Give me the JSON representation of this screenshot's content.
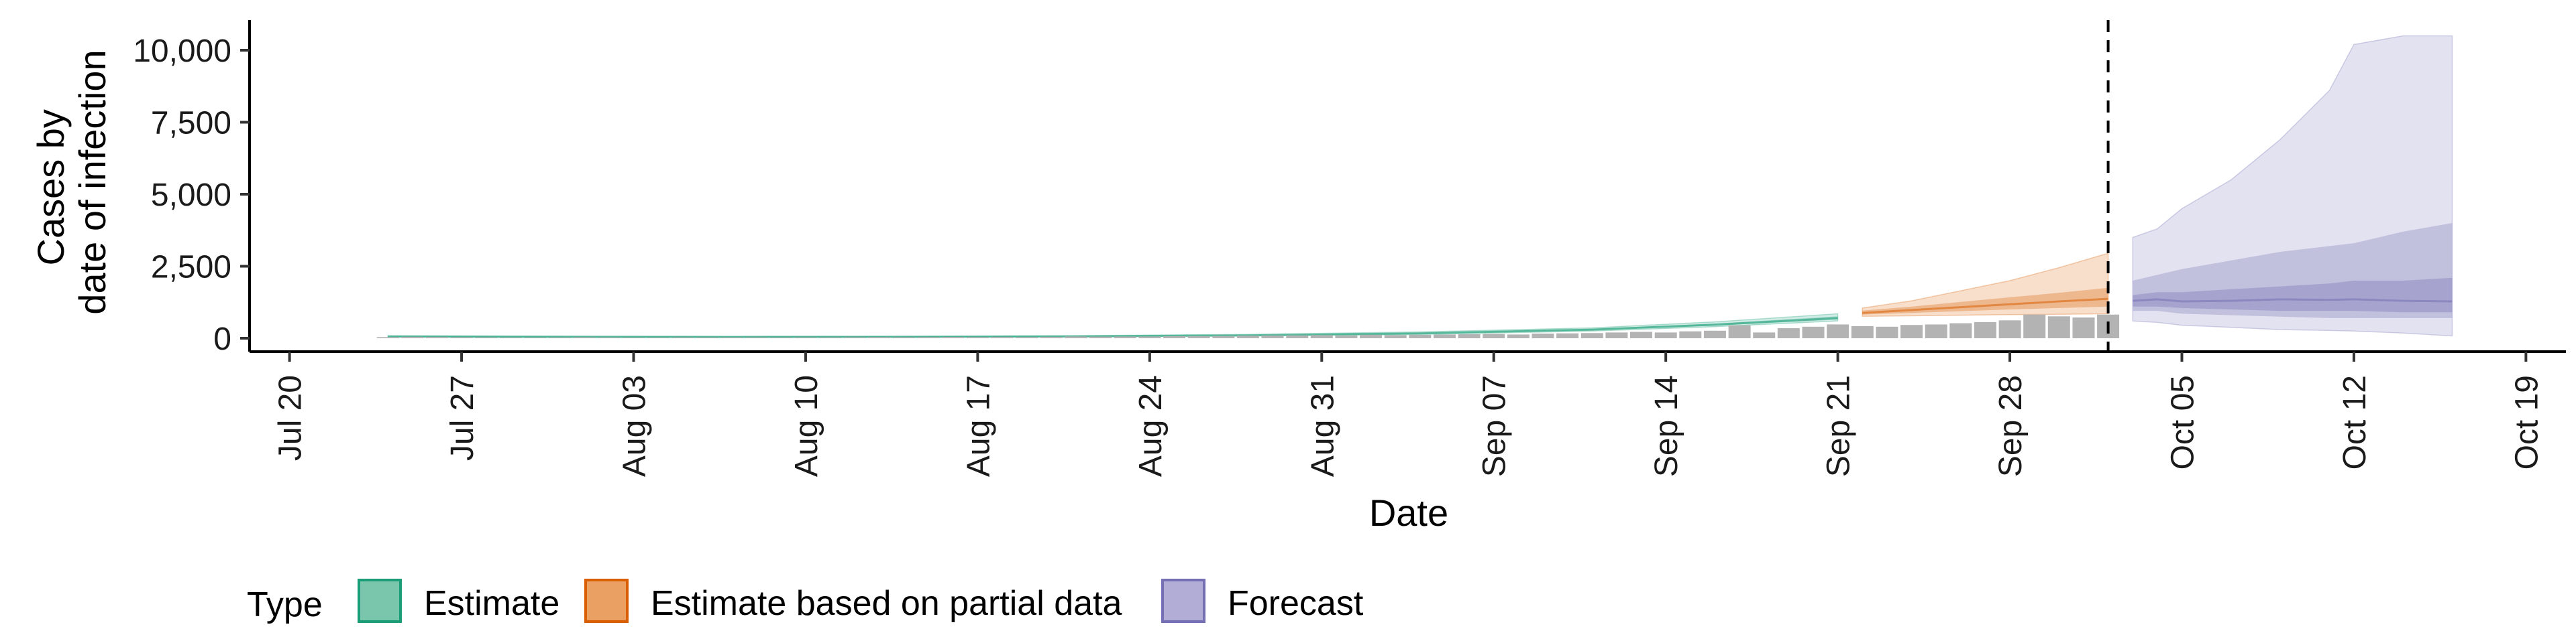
{
  "chart_data": {
    "type": "area",
    "xlabel": "Date",
    "ylabel_lines": [
      "Cases by",
      "date of infection"
    ],
    "x_ticks": [
      "Jul 20",
      "Jul 27",
      "Aug 03",
      "Aug 10",
      "Aug 17",
      "Aug 24",
      "Aug 31",
      "Sep 07",
      "Sep 14",
      "Sep 21",
      "Sep 28",
      "Oct 05",
      "Oct 12",
      "Oct 19"
    ],
    "x_range": [
      "2020-07-19",
      "2020-10-20"
    ],
    "y_ticks": [
      "0",
      "2,500",
      "5,000",
      "7,500",
      "10,000"
    ],
    "ylim": [
      0,
      10500
    ],
    "vline_date": "2020-10-02",
    "reported_cases": {
      "dates": [
        "2020-07-24",
        "2020-07-25",
        "2020-07-26",
        "2020-07-27",
        "2020-07-28",
        "2020-07-29",
        "2020-07-30",
        "2020-07-31",
        "2020-08-01",
        "2020-08-02",
        "2020-08-03",
        "2020-08-04",
        "2020-08-05",
        "2020-08-06",
        "2020-08-07",
        "2020-08-08",
        "2020-08-09",
        "2020-08-10",
        "2020-08-11",
        "2020-08-12",
        "2020-08-13",
        "2020-08-14",
        "2020-08-15",
        "2020-08-16",
        "2020-08-17",
        "2020-08-18",
        "2020-08-19",
        "2020-08-20",
        "2020-08-21",
        "2020-08-22",
        "2020-08-23",
        "2020-08-24",
        "2020-08-25",
        "2020-08-26",
        "2020-08-27",
        "2020-08-28",
        "2020-08-29",
        "2020-08-30",
        "2020-08-31",
        "2020-09-01",
        "2020-09-02",
        "2020-09-03",
        "2020-09-04",
        "2020-09-05",
        "2020-09-06",
        "2020-09-07",
        "2020-09-08",
        "2020-09-09",
        "2020-09-10",
        "2020-09-11",
        "2020-09-12",
        "2020-09-13",
        "2020-09-14",
        "2020-09-15",
        "2020-09-16",
        "2020-09-17",
        "2020-09-18",
        "2020-09-19",
        "2020-09-20",
        "2020-09-21",
        "2020-09-22",
        "2020-09-23",
        "2020-09-24",
        "2020-09-25",
        "2020-09-26",
        "2020-09-27",
        "2020-09-28",
        "2020-09-29",
        "2020-09-30",
        "2020-10-01",
        "2020-10-02"
      ],
      "values": [
        40,
        50,
        45,
        35,
        30,
        28,
        25,
        30,
        35,
        30,
        25,
        25,
        30,
        28,
        30,
        30,
        28,
        30,
        30,
        35,
        40,
        35,
        40,
        45,
        40,
        45,
        40,
        50,
        60,
        55,
        60,
        60,
        70,
        75,
        80,
        90,
        95,
        100,
        110,
        100,
        120,
        110,
        120,
        130,
        140,
        150,
        130,
        160,
        170,
        180,
        200,
        220,
        200,
        240,
        260,
        450,
        200,
        350,
        400,
        480,
        420,
        400,
        460,
        480,
        520,
        560,
        620,
        820,
        760,
        720,
        820
      ]
    },
    "series": [
      {
        "name": "Estimate",
        "color": "#1b9e77",
        "dates": [
          "2020-07-24",
          "2020-07-31",
          "2020-08-07",
          "2020-08-14",
          "2020-08-21",
          "2020-08-28",
          "2020-09-04",
          "2020-09-11",
          "2020-09-16",
          "2020-09-21"
        ],
        "median": [
          60,
          50,
          45,
          50,
          65,
          100,
          170,
          300,
          470,
          700
        ],
        "lower90": [
          40,
          30,
          28,
          32,
          45,
          75,
          130,
          250,
          400,
          600
        ],
        "upper90": [
          90,
          75,
          65,
          70,
          90,
          135,
          220,
          360,
          570,
          850
        ],
        "lower50": [
          50,
          42,
          38,
          42,
          55,
          88,
          150,
          275,
          440,
          650
        ],
        "upper50": [
          72,
          60,
          55,
          60,
          78,
          115,
          195,
          330,
          510,
          760
        ]
      },
      {
        "name": "Estimate based on partial data",
        "color": "#d95f02",
        "dates": [
          "2020-09-22",
          "2020-09-24",
          "2020-09-26",
          "2020-09-28",
          "2020-09-30",
          "2020-10-02"
        ],
        "median": [
          880,
          980,
          1080,
          1180,
          1280,
          1370
        ],
        "lower90": [
          760,
          780,
          800,
          820,
          830,
          850
        ],
        "upper90": [
          1050,
          1300,
          1650,
          2000,
          2450,
          2950
        ],
        "lower50": [
          820,
          880,
          940,
          1000,
          1050,
          1100
        ],
        "upper50": [
          960,
          1100,
          1260,
          1420,
          1580,
          1750
        ]
      },
      {
        "name": "Forecast",
        "color": "#7570b3",
        "dates": [
          "2020-10-03",
          "2020-10-04",
          "2020-10-05",
          "2020-10-07",
          "2020-10-09",
          "2020-10-11",
          "2020-10-12",
          "2020-10-14",
          "2020-10-16"
        ],
        "median": [
          1300,
          1350,
          1280,
          1300,
          1350,
          1330,
          1350,
          1300,
          1280
        ],
        "lower90": [
          600,
          550,
          450,
          380,
          300,
          270,
          250,
          180,
          80
        ],
        "upper90": [
          3500,
          3800,
          4500,
          5500,
          6900,
          8600,
          10200,
          10500,
          10500
        ],
        "lower50": [
          950,
          950,
          850,
          800,
          750,
          700,
          700,
          700,
          700
        ],
        "upper50": [
          2000,
          2200,
          2400,
          2700,
          3000,
          3200,
          3300,
          3700,
          4000
        ],
        "lower_inner": [
          1100,
          1100,
          1050,
          1000,
          950,
          950,
          950,
          900,
          900
        ],
        "upper_inner": [
          1500,
          1600,
          1600,
          1700,
          1800,
          1900,
          2000,
          2000,
          2100
        ]
      }
    ],
    "legend": {
      "title": "Type",
      "position": "bottom",
      "items": [
        {
          "label": "Estimate",
          "fill": "#7ac6ad",
          "stroke": "#1b9e77"
        },
        {
          "label": "Estimate based on partial data",
          "fill": "#eba063",
          "stroke": "#d95f02"
        },
        {
          "label": "Forecast",
          "fill": "#b1add6",
          "stroke": "#7570b3"
        }
      ]
    },
    "grid": false
  }
}
